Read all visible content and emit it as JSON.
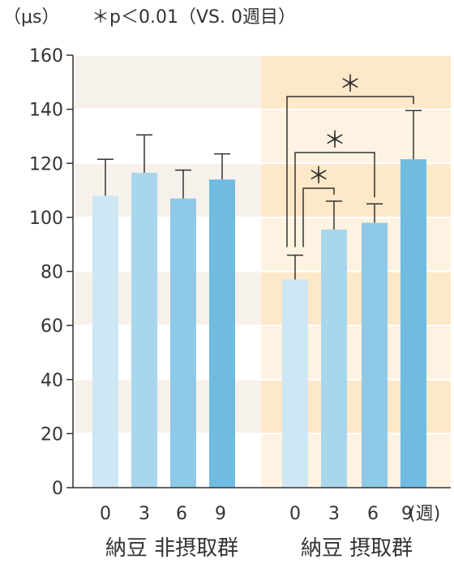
{
  "chart_data": {
    "type": "bar",
    "ylabel": "（μs）",
    "annotation_note": "＊p＜0.01（VS. 0週目）",
    "ylim": [
      0,
      160
    ],
    "yticks": [
      "0",
      "20",
      "40",
      "60",
      "80",
      "100",
      "120",
      "140",
      "160"
    ],
    "x_unit": "(週)",
    "significance_marker": "＊",
    "groups": [
      {
        "name": "納豆 非摂取群",
        "categories": [
          "0",
          "3",
          "6",
          "9"
        ],
        "values": [
          108,
          116.5,
          107,
          114
        ],
        "errors": [
          13.5,
          14,
          10.5,
          9.5
        ],
        "colors": [
          "#cde7f5",
          "#a8d6ec",
          "#8ecae8",
          "#6fbce0"
        ],
        "background": "#f7f1ec"
      },
      {
        "name": "納豆 摂取群",
        "categories": [
          "0",
          "3",
          "6",
          "9"
        ],
        "values": [
          77,
          95.5,
          98,
          121.5
        ],
        "errors": [
          9,
          10.5,
          7,
          18
        ],
        "colors": [
          "#cde7f5",
          "#a8d6ec",
          "#8ecae8",
          "#6fbce0"
        ],
        "background": "#fde8c8",
        "significance": [
          {
            "from": 0,
            "to": 1,
            "label": "＊"
          },
          {
            "from": 0,
            "to": 2,
            "label": "＊"
          },
          {
            "from": 0,
            "to": 3,
            "label": "＊"
          }
        ]
      }
    ]
  }
}
